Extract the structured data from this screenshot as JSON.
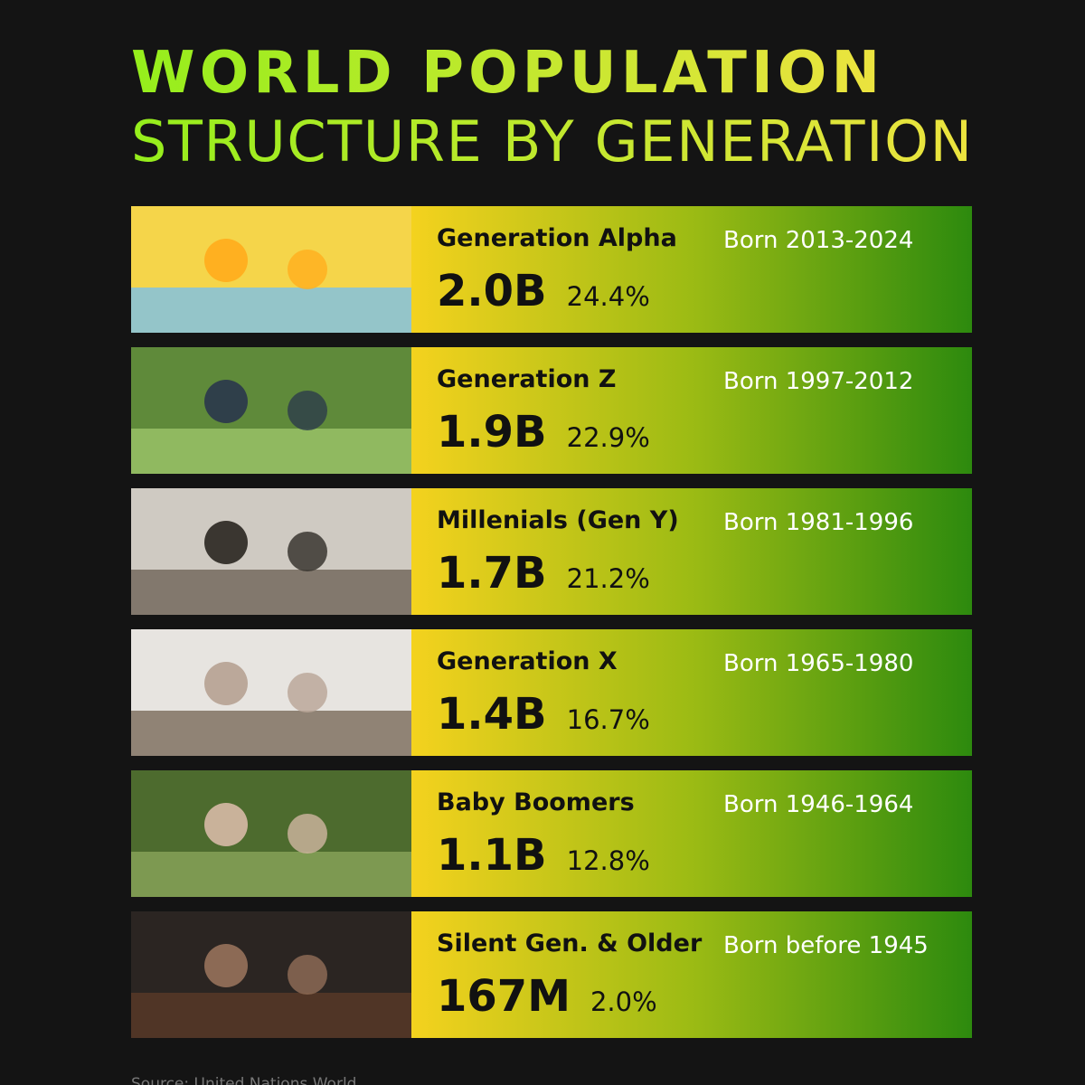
{
  "title": {
    "line1": "WORLD POPULATION",
    "line2": "STRUCTURE BY GENERATION"
  },
  "rows": [
    {
      "name": "Generation Alpha",
      "population": "2.0B",
      "share": "24.4%",
      "born": "Born 2013-2024"
    },
    {
      "name": "Generation Z",
      "population": "1.9B",
      "share": "22.9%",
      "born": "Born 1997-2012"
    },
    {
      "name": "Millenials (Gen Y)",
      "population": "1.7B",
      "share": "21.2%",
      "born": "Born 1981-1996"
    },
    {
      "name": "Generation X",
      "population": "1.4B",
      "share": "16.7%",
      "born": "Born 1965-1980"
    },
    {
      "name": "Baby Boomers",
      "population": "1.1B",
      "share": "12.8%",
      "born": "Born 1946-1964"
    },
    {
      "name": "Silent Gen. & Older",
      "population": "167M",
      "share": "2.0%",
      "born": "Born before 1945"
    }
  ],
  "source": "Source: United Nations World"
}
